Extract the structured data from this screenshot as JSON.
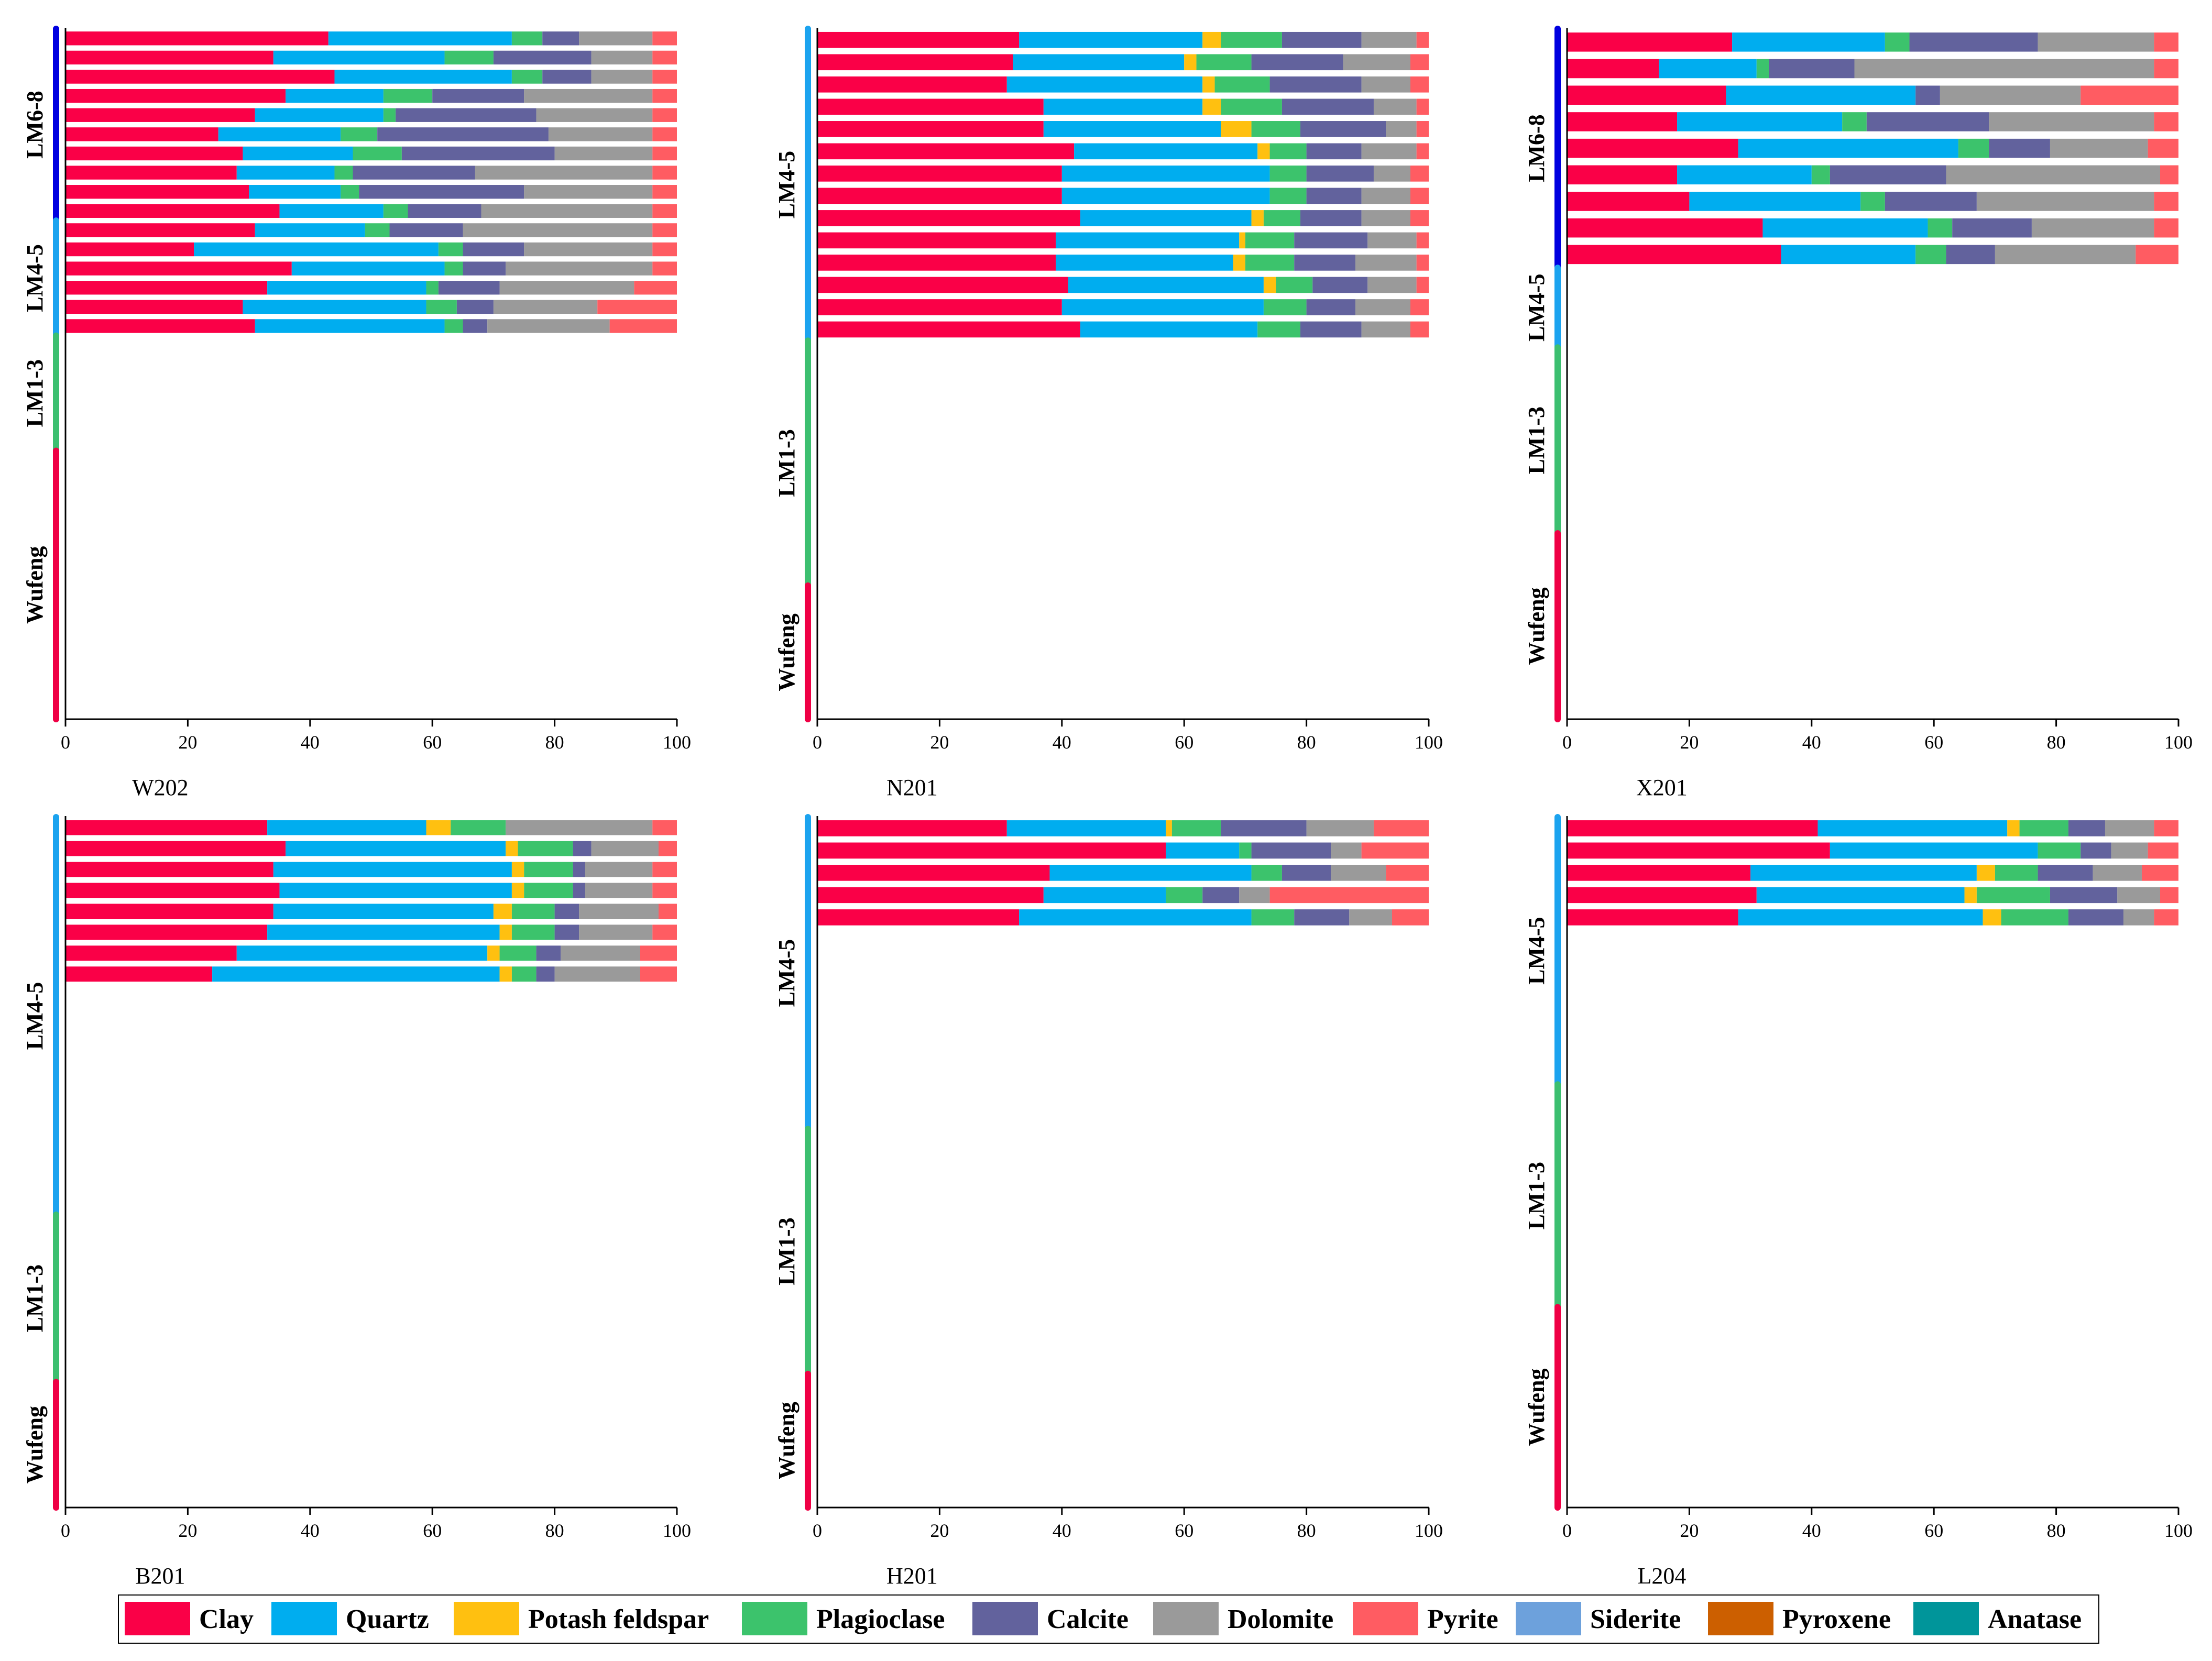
{
  "chart_data": {
    "type": "bar",
    "orientation": "horizontal",
    "stacked": true,
    "xlim": [
      0,
      100
    ],
    "xticks": [
      0,
      20,
      40,
      60,
      80,
      100
    ],
    "grid": false,
    "legend_position": "bottom",
    "series_names": [
      "Clay",
      "Quartz",
      "Potash feldspar",
      "Plagioclase",
      "Calcite",
      "Dolomite",
      "Pyrite",
      "Siderite",
      "Pyroxene",
      "Anatase"
    ],
    "colors": {
      "Clay": "#fa0047",
      "Quartz": "#00adef",
      "Potash feldspar": "#ffc010",
      "Plagioclase": "#3cc36c",
      "Calcite": "#62629d",
      "Dolomite": "#9a9a9a",
      "Pyrite": "#ff5c62",
      "Siderite": "#6da1dc",
      "Pyroxene": "#cc5f00",
      "Anatase": "#00959a"
    },
    "unit_colors": {
      "LM6-8": "#0000e0",
      "LM4-5": "#1ba3ef",
      "LM1-3": "#3cbf70",
      "Wufeng": "#ef0045"
    },
    "panels": [
      {
        "title": "W202",
        "units": [
          {
            "label": "LM6-8",
            "from_row": 0,
            "to_row": 10
          },
          {
            "label": "LM4-5",
            "from_row": 10,
            "to_row": 16
          },
          {
            "label": "LM1-3",
            "from_row": 16,
            "to_row": 22
          },
          {
            "label": "Wufeng",
            "from_row": 22,
            "to_row": 36
          }
        ],
        "samples": [
          [
            43,
            30,
            0,
            5,
            6,
            12,
            4
          ],
          [
            34,
            28,
            0,
            8,
            16,
            10,
            4
          ],
          [
            44,
            29,
            0,
            5,
            8,
            10,
            4
          ],
          [
            36,
            16,
            0,
            8,
            15,
            21,
            4
          ],
          [
            31,
            21,
            0,
            2,
            23,
            19,
            4
          ],
          [
            25,
            20,
            0,
            6,
            28,
            17,
            4
          ],
          [
            29,
            18,
            0,
            8,
            25,
            16,
            4
          ],
          [
            28,
            16,
            0,
            3,
            20,
            29,
            4
          ],
          [
            30,
            15,
            0,
            3,
            27,
            21,
            4
          ],
          [
            35,
            17,
            0,
            4,
            12,
            28,
            4
          ],
          [
            31,
            18,
            0,
            4,
            12,
            31,
            4
          ],
          [
            21,
            40,
            0,
            4,
            10,
            21,
            4
          ],
          [
            37,
            25,
            0,
            3,
            7,
            24,
            4
          ],
          [
            33,
            26,
            0,
            2,
            10,
            22,
            7
          ],
          [
            29,
            30,
            0,
            5,
            6,
            17,
            13
          ],
          [
            31,
            31,
            0,
            3,
            4,
            20,
            11
          ]
        ]
      },
      {
        "title": "N201",
        "units": [
          {
            "label": "LM4-5",
            "from_row": 0,
            "to_row": 14
          },
          {
            "label": "LM1-3",
            "from_row": 14,
            "to_row": 25
          },
          {
            "label": "Wufeng",
            "from_row": 25,
            "to_row": 31
          }
        ],
        "samples": [
          [
            33,
            30,
            3,
            10,
            13,
            9,
            2
          ],
          [
            32,
            28,
            2,
            9,
            15,
            11,
            3
          ],
          [
            31,
            32,
            2,
            9,
            15,
            8,
            3
          ],
          [
            37,
            26,
            3,
            10,
            15,
            7,
            2
          ],
          [
            37,
            29,
            5,
            8,
            14,
            5,
            2
          ],
          [
            42,
            30,
            2,
            6,
            9,
            9,
            2
          ],
          [
            40,
            34,
            0,
            6,
            11,
            6,
            3
          ],
          [
            40,
            34,
            0,
            6,
            9,
            8,
            3
          ],
          [
            43,
            28,
            2,
            6,
            10,
            8,
            3
          ],
          [
            39,
            30,
            1,
            8,
            12,
            8,
            2
          ],
          [
            39,
            29,
            2,
            8,
            10,
            10,
            2
          ],
          [
            41,
            32,
            2,
            6,
            9,
            8,
            2
          ],
          [
            40,
            33,
            0,
            7,
            8,
            9,
            3
          ],
          [
            43,
            29,
            0,
            7,
            10,
            8,
            3
          ]
        ]
      },
      {
        "title": "X201",
        "units": [
          {
            "label": "LM6-8",
            "from_row": 0,
            "to_row": 9
          },
          {
            "label": "LM4-5",
            "from_row": 9,
            "to_row": 12
          },
          {
            "label": "LM1-3",
            "from_row": 12,
            "to_row": 19
          },
          {
            "label": "Wufeng",
            "from_row": 19,
            "to_row": 26
          }
        ],
        "samples": [
          [
            27,
            25,
            0,
            4,
            21,
            19,
            4
          ],
          [
            15,
            16,
            0,
            2,
            14,
            49,
            4
          ],
          [
            26,
            31,
            0,
            0,
            4,
            23,
            16
          ],
          [
            18,
            27,
            0,
            4,
            20,
            27,
            4
          ],
          [
            28,
            36,
            0,
            5,
            10,
            16,
            5
          ],
          [
            18,
            22,
            0,
            3,
            19,
            35,
            3
          ],
          [
            20,
            28,
            0,
            4,
            15,
            29,
            4
          ],
          [
            32,
            27,
            0,
            4,
            13,
            20,
            4
          ],
          [
            35,
            22,
            0,
            5,
            8,
            23,
            7
          ]
        ]
      },
      {
        "title": "B201",
        "units": [
          {
            "label": "LM4-5",
            "from_row": 0,
            "to_row": 19
          },
          {
            "label": "LM1-3",
            "from_row": 19,
            "to_row": 27
          },
          {
            "label": "Wufeng",
            "from_row": 27,
            "to_row": 33
          }
        ],
        "samples": [
          [
            33,
            26,
            4,
            9,
            0,
            24,
            4
          ],
          [
            36,
            36,
            2,
            9,
            3,
            11,
            3
          ],
          [
            34,
            39,
            2,
            8,
            2,
            11,
            4
          ],
          [
            35,
            38,
            2,
            8,
            2,
            11,
            4
          ],
          [
            34,
            36,
            3,
            7,
            4,
            13,
            3
          ],
          [
            33,
            38,
            2,
            7,
            4,
            12,
            4
          ],
          [
            28,
            41,
            2,
            6,
            4,
            13,
            6
          ],
          [
            24,
            47,
            2,
            4,
            3,
            14,
            6
          ]
        ]
      },
      {
        "title": "H201",
        "units": [
          {
            "label": "LM4-5",
            "from_row": 0,
            "to_row": 14
          },
          {
            "label": "LM1-3",
            "from_row": 14,
            "to_row": 25
          },
          {
            "label": "Wufeng",
            "from_row": 25,
            "to_row": 31
          }
        ],
        "samples": [
          [
            31,
            26,
            1,
            8,
            14,
            11,
            9
          ],
          [
            57,
            12,
            0,
            2,
            13,
            5,
            11
          ],
          [
            38,
            33,
            0,
            5,
            8,
            9,
            7
          ],
          [
            37,
            20,
            0,
            6,
            6,
            5,
            26
          ],
          [
            33,
            38,
            0,
            7,
            9,
            7,
            6
          ]
        ]
      },
      {
        "title": "L204",
        "units": [
          {
            "label": "LM4-5",
            "from_row": 0,
            "to_row": 12
          },
          {
            "label": "LM1-3",
            "from_row": 12,
            "to_row": 22
          },
          {
            "label": "Wufeng",
            "from_row": 22,
            "to_row": 31
          }
        ],
        "samples": [
          [
            41,
            31,
            2,
            8,
            6,
            8,
            4
          ],
          [
            43,
            34,
            0,
            7,
            5,
            6,
            5
          ],
          [
            30,
            37,
            3,
            7,
            9,
            8,
            6
          ],
          [
            31,
            34,
            2,
            12,
            11,
            7,
            3
          ],
          [
            28,
            40,
            3,
            11,
            9,
            5,
            4
          ]
        ]
      }
    ],
    "legend": [
      "Clay",
      "Quartz",
      "Potash feldspar",
      "Plagioclase",
      "Calcite",
      "Dolomite",
      "Pyrite",
      "Siderite",
      "Pyroxene",
      "Anatase"
    ]
  }
}
